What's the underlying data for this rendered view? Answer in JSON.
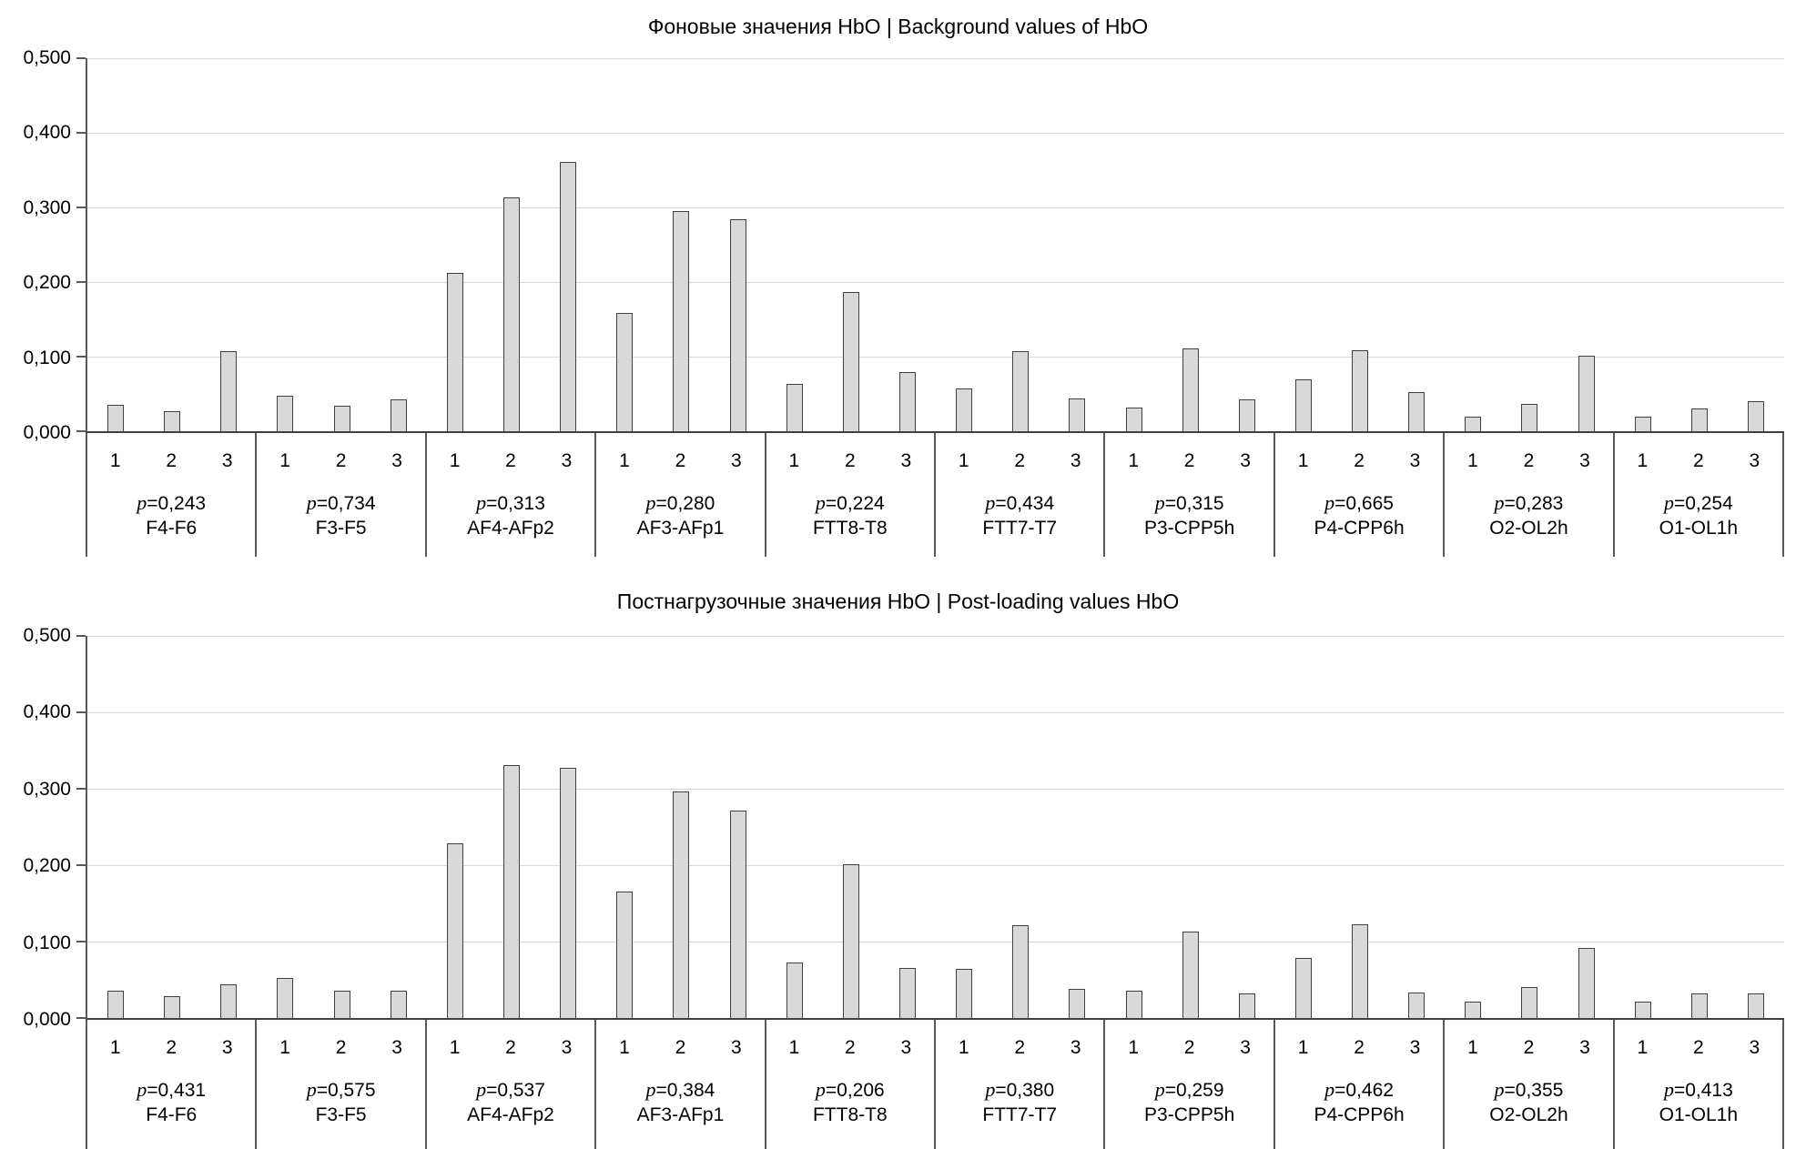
{
  "chart_data": [
    {
      "type": "bar",
      "title": "Фоновые значения HbO | Background values of HbO",
      "xlabel": "",
      "ylabel": "",
      "ylim": [
        0,
        0.5
      ],
      "y_tick_labels": [
        "0,500",
        "0,400",
        "0,300",
        "0,200",
        "0,100",
        "0,000"
      ],
      "grid": "horizontal",
      "legend": "none",
      "bar_color": "#d9d9d9",
      "bar_border_color": "#404040",
      "x_sublabels": [
        "1",
        "2",
        "3"
      ],
      "groups": [
        {
          "name": "F4-F6",
          "p_label": "p=0,243",
          "values": [
            0.035,
            0.027,
            0.107
          ]
        },
        {
          "name": "F3-F5",
          "p_label": "p=0,734",
          "values": [
            0.047,
            0.034,
            0.043
          ]
        },
        {
          "name": "AF4-AFp2",
          "p_label": "p=0,313",
          "values": [
            0.212,
            0.314,
            0.361
          ]
        },
        {
          "name": "AF3-AFp1",
          "p_label": "p=0,280",
          "values": [
            0.159,
            0.295,
            0.284
          ]
        },
        {
          "name": "FTT8-T8",
          "p_label": "p=0,224",
          "values": [
            0.063,
            0.186,
            0.079
          ]
        },
        {
          "name": "FTT7-T7",
          "p_label": "p=0,434",
          "values": [
            0.057,
            0.107,
            0.044
          ]
        },
        {
          "name": "P3-CPP5h",
          "p_label": "p=0,315",
          "values": [
            0.032,
            0.111,
            0.043
          ]
        },
        {
          "name": "P4-CPP6h",
          "p_label": "p=0,665",
          "values": [
            0.069,
            0.108,
            0.053
          ]
        },
        {
          "name": "O2-OL2h",
          "p_label": "p=0,283",
          "values": [
            0.02,
            0.037,
            0.101
          ]
        },
        {
          "name": "O1-OL1h",
          "p_label": "p=0,254",
          "values": [
            0.02,
            0.03,
            0.04
          ]
        }
      ]
    },
    {
      "type": "bar",
      "title": "Постнагрузочные значения HbO | Post-loading values HbO",
      "xlabel": "",
      "ylabel": "",
      "ylim": [
        0,
        0.5
      ],
      "y_tick_labels": [
        "0,500",
        "0,400",
        "0,300",
        "0,200",
        "0,100",
        "0,000"
      ],
      "grid": "horizontal",
      "legend": "none",
      "bar_color": "#d9d9d9",
      "bar_border_color": "#404040",
      "x_sublabels": [
        "1",
        "2",
        "3"
      ],
      "groups": [
        {
          "name": "F4-F6",
          "p_label": "p=0,431",
          "values": [
            0.036,
            0.029,
            0.044
          ]
        },
        {
          "name": "F3-F5",
          "p_label": "p=0,575",
          "values": [
            0.052,
            0.036,
            0.036
          ]
        },
        {
          "name": "AF4-AFp2",
          "p_label": "p=0,537",
          "values": [
            0.228,
            0.331,
            0.327
          ]
        },
        {
          "name": "AF3-AFp1",
          "p_label": "p=0,384",
          "values": [
            0.166,
            0.297,
            0.271
          ]
        },
        {
          "name": "FTT8-T8",
          "p_label": "p=0,206",
          "values": [
            0.073,
            0.201,
            0.066
          ]
        },
        {
          "name": "FTT7-T7",
          "p_label": "p=0,380",
          "values": [
            0.064,
            0.122,
            0.038
          ]
        },
        {
          "name": "P3-CPP5h",
          "p_label": "p=0,259",
          "values": [
            0.036,
            0.113,
            0.032
          ]
        },
        {
          "name": "P4-CPP6h",
          "p_label": "p=0,462",
          "values": [
            0.078,
            0.123,
            0.033
          ]
        },
        {
          "name": "O2-OL2h",
          "p_label": "p=0,355",
          "values": [
            0.021,
            0.04,
            0.092
          ]
        },
        {
          "name": "O1-OL1h",
          "p_label": "p=0,413",
          "values": [
            0.021,
            0.032,
            0.032
          ]
        }
      ]
    }
  ]
}
